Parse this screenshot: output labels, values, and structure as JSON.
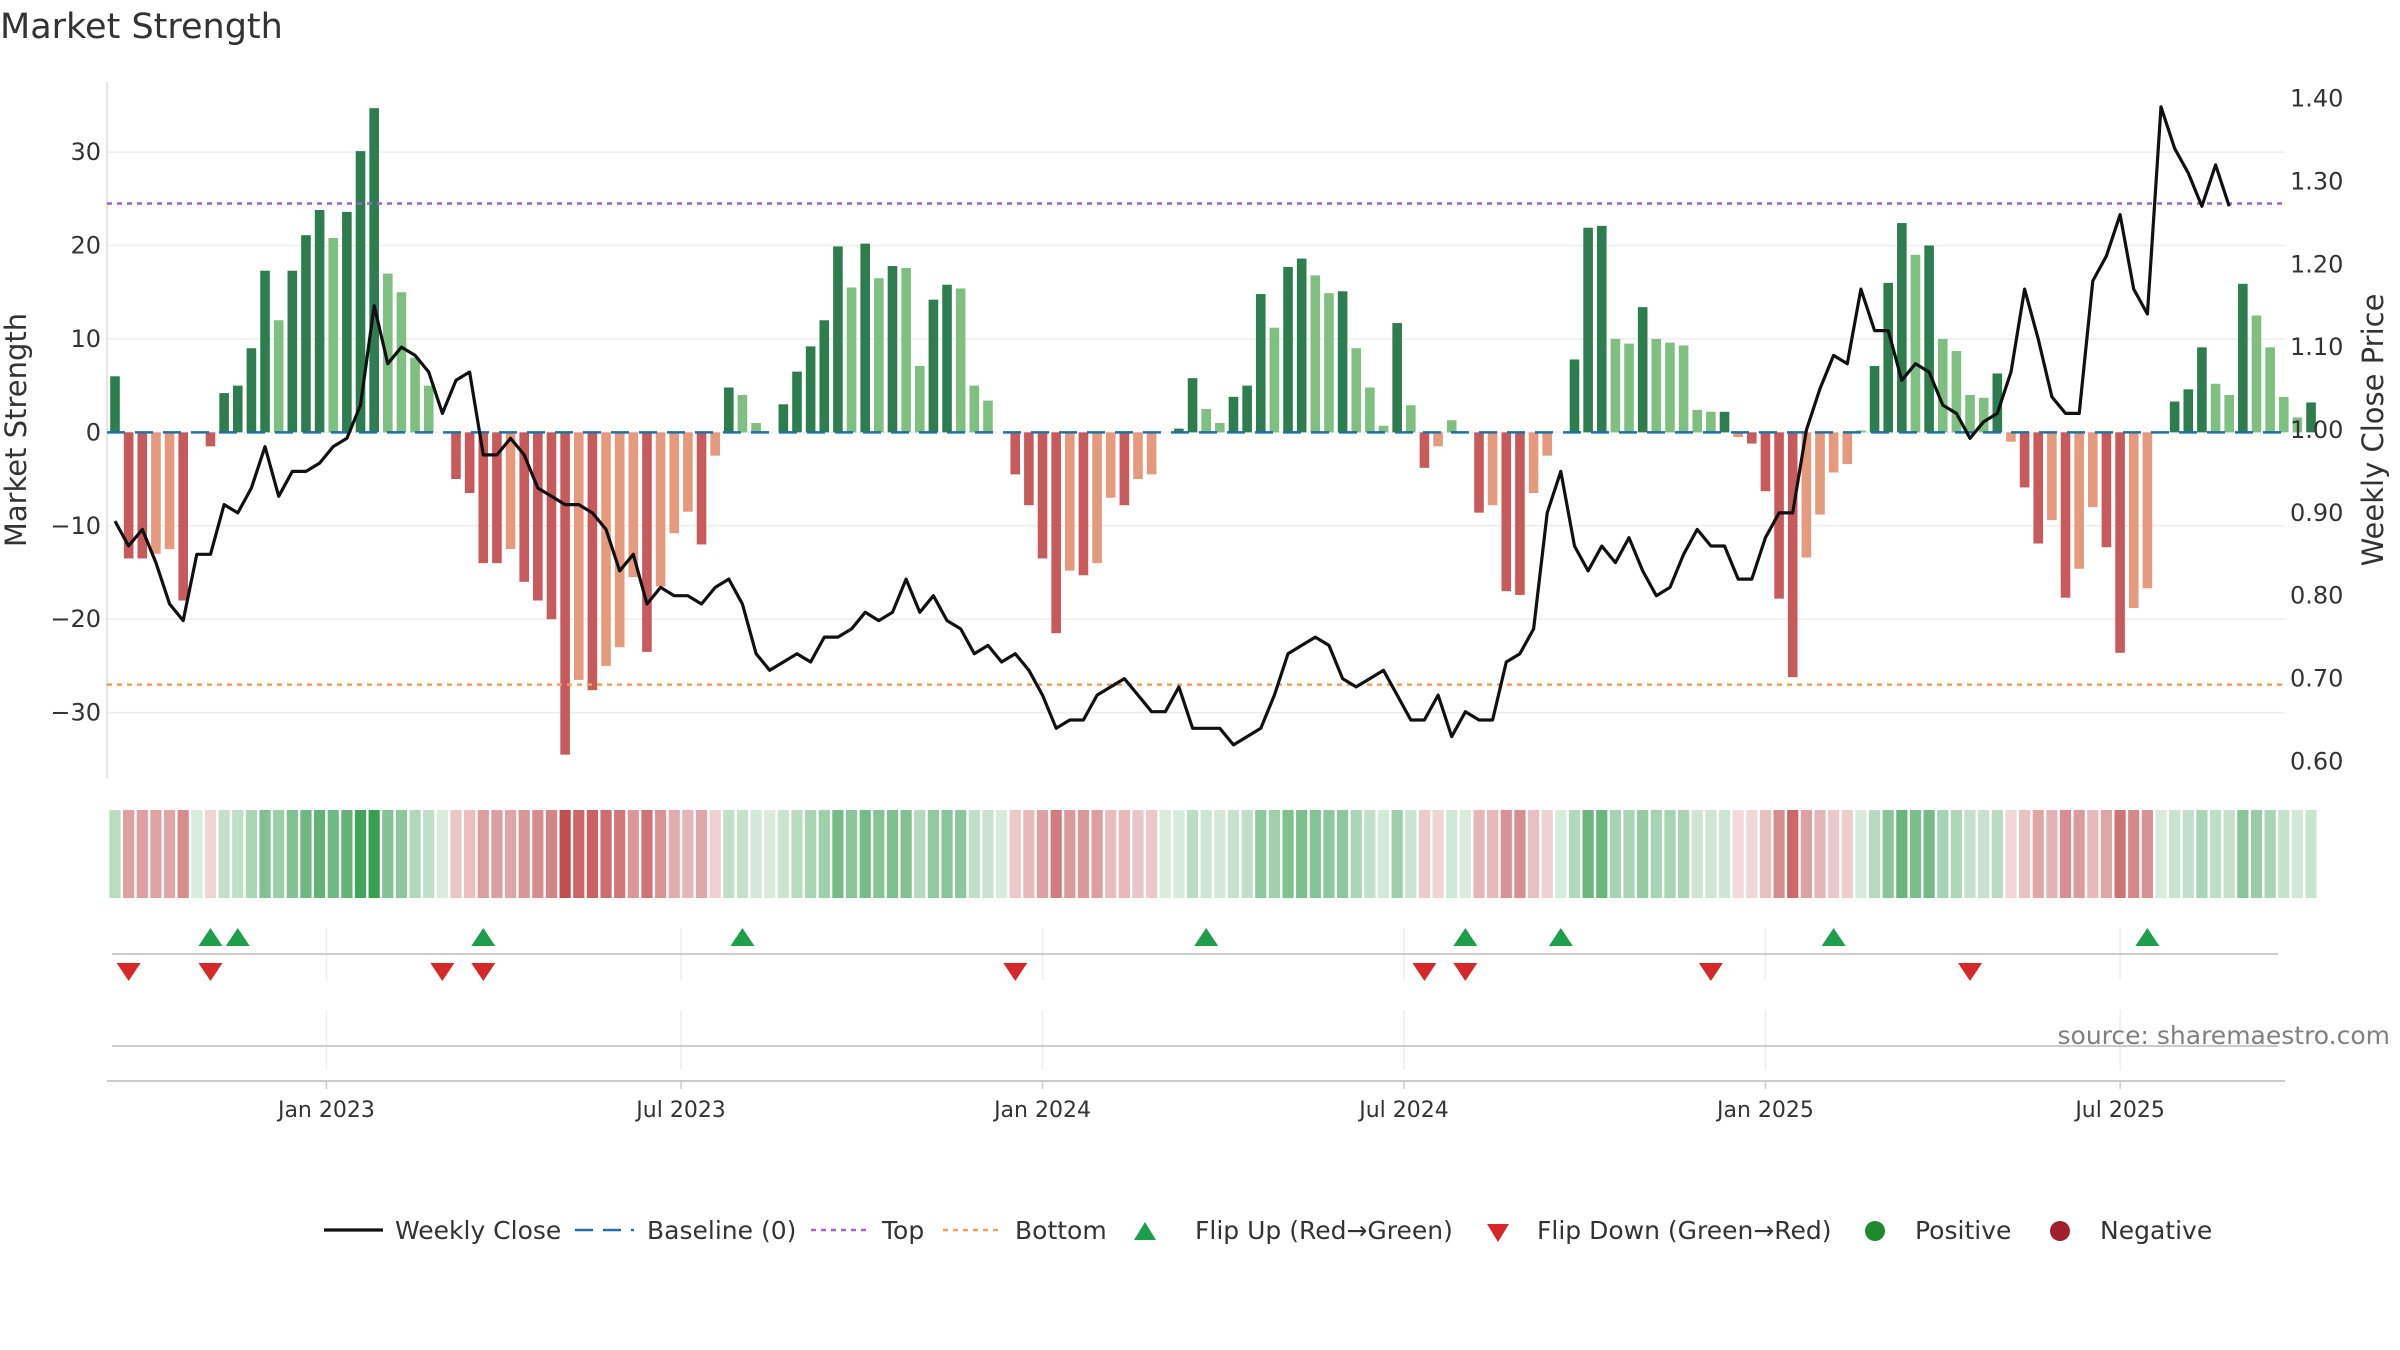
{
  "chart_data": {
    "type": "bar",
    "title": "Market Strength",
    "ylabel_left": "Market Strength",
    "ylabel_right": "Weekly Close Price",
    "source_note": "source: sharemaestro.com",
    "left_ylim": [
      -37,
      37.5
    ],
    "right_ylim": [
      0.58,
      1.42
    ],
    "left_ticks": [
      {
        "v": 30,
        "label": "30"
      },
      {
        "v": 20,
        "label": "20"
      },
      {
        "v": 10,
        "label": "10"
      },
      {
        "v": 0,
        "label": "0"
      },
      {
        "v": -10,
        "label": "−10"
      },
      {
        "v": -20,
        "label": "−20"
      },
      {
        "v": -30,
        "label": "−30"
      }
    ],
    "right_ticks": [
      {
        "v": 1.4,
        "label": "1.40"
      },
      {
        "v": 1.3,
        "label": "1.30"
      },
      {
        "v": 1.2,
        "label": "1.20"
      },
      {
        "v": 1.1,
        "label": "1.10"
      },
      {
        "v": 1.0,
        "label": "1.00"
      },
      {
        "v": 0.9,
        "label": "0.90"
      },
      {
        "v": 0.8,
        "label": "0.80"
      },
      {
        "v": 0.7,
        "label": "0.70"
      },
      {
        "v": 0.6,
        "label": "0.60"
      }
    ],
    "x_ticks": [
      {
        "week": 15.5,
        "label": "Jan 2023"
      },
      {
        "week": 41.5,
        "label": "Jul 2023"
      },
      {
        "week": 68,
        "label": "Jan 2024"
      },
      {
        "week": 94.5,
        "label": "Jul 2024"
      },
      {
        "week": 121,
        "label": "Jan 2025"
      },
      {
        "week": 147,
        "label": "Jul 2025"
      }
    ],
    "top_line": 24.5,
    "bottom_line": -27.0,
    "strength": [
      6,
      -13.5,
      -13.5,
      -13,
      -12.5,
      -18,
      0,
      -1.5,
      4.2,
      5,
      9,
      17.3,
      12,
      17.3,
      21.1,
      23.8,
      20.8,
      23.6,
      30.1,
      34.7,
      17,
      15,
      8,
      5,
      0,
      -5,
      -6.5,
      -14,
      -14,
      -12.5,
      -16,
      -18,
      -20,
      -34.5,
      -26.5,
      -27.6,
      -25,
      -23,
      -15.5,
      -23.5,
      -16.5,
      -10.8,
      -8.5,
      -12,
      -2.5,
      4.8,
      4,
      1,
      0,
      3,
      6.5,
      9.2,
      12,
      19.9,
      15.5,
      20.2,
      16.5,
      17.8,
      17.6,
      7.1,
      14.2,
      15.8,
      15.4,
      5,
      3.4,
      0,
      -4.5,
      -7.8,
      -13.5,
      -21.5,
      -14.8,
      -15.3,
      -14,
      -7,
      -7.8,
      -5,
      -4.5,
      0,
      0.4,
      5.8,
      2.5,
      1,
      3.8,
      5,
      14.8,
      11.2,
      17.7,
      18.6,
      16.8,
      14.9,
      15.1,
      9,
      4.8,
      0.7,
      11.7,
      2.9,
      -3.8,
      -1.5,
      1.3,
      0,
      -8.6,
      -7.8,
      -17,
      -17.4,
      -6.5,
      -2.5,
      0,
      7.8,
      21.9,
      22.1,
      10,
      9.5,
      13.4,
      10,
      9.6,
      9.3,
      2.4,
      2.2,
      2.2,
      -0.5,
      -1.2,
      -6.3,
      -17.8,
      -26.2,
      -13.4,
      -8.8,
      -4.3,
      -3.4,
      0.2,
      7.1,
      16,
      22.4,
      19,
      20,
      10,
      8.7,
      4,
      3.7,
      6.3,
      -1,
      -5.9,
      -11.9,
      -9.4,
      -17.7,
      -14.6,
      -8,
      -12.3,
      -23.6,
      -18.8,
      -16.7,
      0,
      3.3,
      4.6,
      9.1,
      5.2,
      4,
      15.9,
      12.5,
      9.1,
      3.8,
      1.6,
      3.2
    ],
    "weekly_close": [
      0.89,
      0.86,
      0.88,
      0.84,
      0.79,
      0.77,
      0.85,
      0.85,
      0.91,
      0.9,
      0.93,
      0.98,
      0.92,
      0.95,
      0.95,
      0.96,
      0.98,
      0.99,
      1.03,
      1.15,
      1.08,
      1.1,
      1.09,
      1.07,
      1.02,
      1.06,
      1.07,
      0.97,
      0.97,
      0.99,
      0.97,
      0.93,
      0.92,
      0.91,
      0.91,
      0.9,
      0.88,
      0.83,
      0.85,
      0.79,
      0.81,
      0.8,
      0.8,
      0.79,
      0.81,
      0.82,
      0.79,
      0.73,
      0.71,
      0.72,
      0.73,
      0.72,
      0.75,
      0.75,
      0.76,
      0.78,
      0.77,
      0.78,
      0.82,
      0.78,
      0.8,
      0.77,
      0.76,
      0.73,
      0.74,
      0.72,
      0.73,
      0.71,
      0.68,
      0.64,
      0.65,
      0.65,
      0.68,
      0.69,
      0.7,
      0.68,
      0.66,
      0.66,
      0.69,
      0.64,
      0.64,
      0.64,
      0.62,
      0.63,
      0.64,
      0.68,
      0.73,
      0.74,
      0.75,
      0.74,
      0.7,
      0.69,
      0.7,
      0.71,
      0.68,
      0.65,
      0.65,
      0.68,
      0.63,
      0.66,
      0.65,
      0.65,
      0.72,
      0.73,
      0.76,
      0.9,
      0.95,
      0.86,
      0.83,
      0.86,
      0.84,
      0.87,
      0.83,
      0.8,
      0.81,
      0.85,
      0.88,
      0.86,
      0.86,
      0.82,
      0.82,
      0.87,
      0.9,
      0.9,
      1,
      1.05,
      1.09,
      1.08,
      1.17,
      1.12,
      1.12,
      1.06,
      1.08,
      1.07,
      1.03,
      1.02,
      0.99,
      1.01,
      1.02,
      1.07,
      1.17,
      1.11,
      1.04,
      1.02,
      1.02,
      1.18,
      1.21,
      1.26,
      1.17,
      1.14,
      1.39,
      1.34,
      1.31,
      1.27,
      1.32,
      1.27
    ],
    "flips_up": [
      7,
      9,
      27,
      46,
      80,
      99,
      106,
      126,
      149
    ],
    "flips_down": [
      1,
      7,
      24,
      27,
      66,
      96,
      99,
      117,
      136
    ]
  },
  "legend": {
    "weekly_close": "Weekly Close",
    "baseline": "Baseline (0)",
    "top": "Top",
    "bottom": "Bottom",
    "flip_up": "Flip Up (Red→Green)",
    "flip_down": "Flip Down (Green→Red)",
    "positive": "Positive",
    "negative": "Negative"
  },
  "colors": {
    "pos_dark": "#2e7d4f",
    "pos_light": "#7fbf7f",
    "neg_dark": "#c75b5b",
    "neg_light": "#e59a7e",
    "close_line": "#111111",
    "baseline": "#1f6fa8",
    "top": "#9966cc",
    "bottom": "#f0a05a",
    "flip_up": "#1e9e4a",
    "flip_down": "#d62828",
    "positive_dot": "#1e8a2e",
    "negative_dot": "#a01f2a"
  }
}
